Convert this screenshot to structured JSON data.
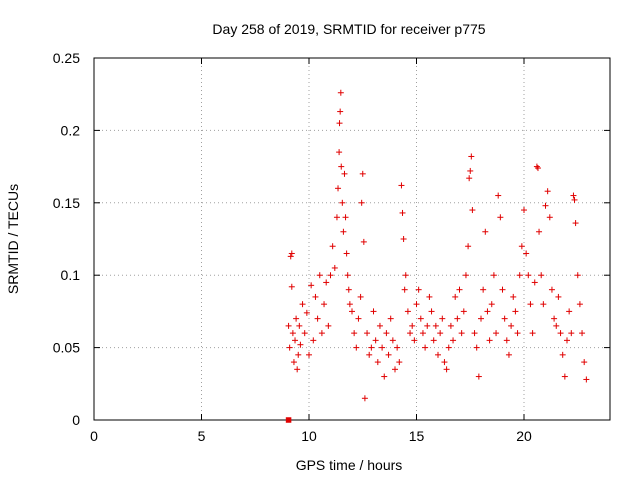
{
  "chart_data": {
    "type": "scatter",
    "title": "Day 258 of 2019, SRMTID for receiver p775",
    "xlabel": "GPS time / hours",
    "ylabel": "SRMTID / TECUs",
    "xlim": [
      0,
      24
    ],
    "ylim": [
      0,
      0.25
    ],
    "x_ticks": [
      0,
      5,
      10,
      15,
      20
    ],
    "x_tick_labels": [
      "0",
      "5",
      "10",
      "15",
      "20"
    ],
    "y_ticks": [
      0,
      0.05,
      0.1,
      0.15,
      0.2,
      0.25
    ],
    "y_tick_labels": [
      "0",
      "0.05",
      "0.1",
      "0.15",
      "0.2",
      "0.25"
    ],
    "grid": true,
    "marker": "plus",
    "color": "#e00000",
    "square_marker": {
      "x": 9.05,
      "y": 0.0
    },
    "series": [
      {
        "name": "SRMTID",
        "points": [
          [
            9.05,
            0.065
          ],
          [
            9.1,
            0.05
          ],
          [
            9.15,
            0.113
          ],
          [
            9.2,
            0.115
          ],
          [
            9.2,
            0.092
          ],
          [
            9.25,
            0.06
          ],
          [
            9.3,
            0.04
          ],
          [
            9.35,
            0.055
          ],
          [
            9.4,
            0.07
          ],
          [
            9.45,
            0.035
          ],
          [
            9.5,
            0.045
          ],
          [
            9.55,
            0.065
          ],
          [
            9.6,
            0.052
          ],
          [
            9.7,
            0.08
          ],
          [
            9.8,
            0.06
          ],
          [
            9.9,
            0.074
          ],
          [
            10.0,
            0.045
          ],
          [
            10.1,
            0.093
          ],
          [
            10.2,
            0.055
          ],
          [
            10.3,
            0.085
          ],
          [
            10.4,
            0.07
          ],
          [
            10.5,
            0.1
          ],
          [
            10.6,
            0.06
          ],
          [
            10.7,
            0.08
          ],
          [
            10.8,
            0.095
          ],
          [
            10.9,
            0.065
          ],
          [
            11.0,
            0.1
          ],
          [
            11.1,
            0.12
          ],
          [
            11.2,
            0.105
          ],
          [
            11.3,
            0.14
          ],
          [
            11.35,
            0.16
          ],
          [
            11.4,
            0.185
          ],
          [
            11.42,
            0.205
          ],
          [
            11.45,
            0.213
          ],
          [
            11.48,
            0.226
          ],
          [
            11.5,
            0.175
          ],
          [
            11.55,
            0.15
          ],
          [
            11.6,
            0.13
          ],
          [
            11.65,
            0.17
          ],
          [
            11.7,
            0.14
          ],
          [
            11.75,
            0.115
          ],
          [
            11.8,
            0.1
          ],
          [
            11.85,
            0.09
          ],
          [
            11.9,
            0.08
          ],
          [
            12.0,
            0.075
          ],
          [
            12.1,
            0.06
          ],
          [
            12.2,
            0.05
          ],
          [
            12.3,
            0.07
          ],
          [
            12.4,
            0.085
          ],
          [
            12.45,
            0.15
          ],
          [
            12.5,
            0.17
          ],
          [
            12.55,
            0.123
          ],
          [
            12.6,
            0.015
          ],
          [
            12.7,
            0.06
          ],
          [
            12.8,
            0.045
          ],
          [
            12.9,
            0.05
          ],
          [
            13.0,
            0.075
          ],
          [
            13.1,
            0.055
          ],
          [
            13.2,
            0.04
          ],
          [
            13.3,
            0.065
          ],
          [
            13.4,
            0.05
          ],
          [
            13.5,
            0.03
          ],
          [
            13.6,
            0.06
          ],
          [
            13.7,
            0.045
          ],
          [
            13.8,
            0.07
          ],
          [
            13.9,
            0.055
          ],
          [
            14.0,
            0.035
          ],
          [
            14.1,
            0.05
          ],
          [
            14.2,
            0.04
          ],
          [
            14.3,
            0.162
          ],
          [
            14.35,
            0.143
          ],
          [
            14.4,
            0.125
          ],
          [
            14.45,
            0.09
          ],
          [
            14.5,
            0.1
          ],
          [
            14.6,
            0.075
          ],
          [
            14.7,
            0.06
          ],
          [
            14.8,
            0.065
          ],
          [
            14.9,
            0.055
          ],
          [
            15.0,
            0.08
          ],
          [
            15.1,
            0.09
          ],
          [
            15.2,
            0.07
          ],
          [
            15.3,
            0.06
          ],
          [
            15.4,
            0.05
          ],
          [
            15.5,
            0.065
          ],
          [
            15.6,
            0.085
          ],
          [
            15.7,
            0.075
          ],
          [
            15.8,
            0.055
          ],
          [
            15.9,
            0.065
          ],
          [
            16.0,
            0.045
          ],
          [
            16.1,
            0.06
          ],
          [
            16.2,
            0.07
          ],
          [
            16.3,
            0.04
          ],
          [
            16.4,
            0.035
          ],
          [
            16.5,
            0.05
          ],
          [
            16.6,
            0.065
          ],
          [
            16.7,
            0.055
          ],
          [
            16.8,
            0.085
          ],
          [
            16.9,
            0.07
          ],
          [
            17.0,
            0.09
          ],
          [
            17.1,
            0.06
          ],
          [
            17.2,
            0.075
          ],
          [
            17.3,
            0.1
          ],
          [
            17.4,
            0.12
          ],
          [
            17.45,
            0.167
          ],
          [
            17.5,
            0.172
          ],
          [
            17.55,
            0.182
          ],
          [
            17.6,
            0.145
          ],
          [
            17.7,
            0.06
          ],
          [
            17.8,
            0.05
          ],
          [
            17.9,
            0.03
          ],
          [
            18.0,
            0.07
          ],
          [
            18.1,
            0.09
          ],
          [
            18.2,
            0.13
          ],
          [
            18.3,
            0.075
          ],
          [
            18.4,
            0.055
          ],
          [
            18.5,
            0.08
          ],
          [
            18.6,
            0.1
          ],
          [
            18.7,
            0.06
          ],
          [
            18.8,
            0.155
          ],
          [
            18.9,
            0.14
          ],
          [
            19.0,
            0.09
          ],
          [
            19.1,
            0.07
          ],
          [
            19.2,
            0.055
          ],
          [
            19.3,
            0.045
          ],
          [
            19.4,
            0.065
          ],
          [
            19.5,
            0.085
          ],
          [
            19.6,
            0.075
          ],
          [
            19.7,
            0.06
          ],
          [
            19.8,
            0.1
          ],
          [
            19.9,
            0.12
          ],
          [
            20.0,
            0.145
          ],
          [
            20.1,
            0.115
          ],
          [
            20.2,
            0.1
          ],
          [
            20.3,
            0.08
          ],
          [
            20.4,
            0.06
          ],
          [
            20.5,
            0.095
          ],
          [
            20.6,
            0.175
          ],
          [
            20.65,
            0.174
          ],
          [
            20.7,
            0.13
          ],
          [
            20.8,
            0.1
          ],
          [
            20.9,
            0.08
          ],
          [
            21.0,
            0.148
          ],
          [
            21.1,
            0.158
          ],
          [
            21.2,
            0.14
          ],
          [
            21.3,
            0.09
          ],
          [
            21.4,
            0.07
          ],
          [
            21.5,
            0.065
          ],
          [
            21.6,
            0.085
          ],
          [
            21.7,
            0.06
          ],
          [
            21.8,
            0.045
          ],
          [
            21.9,
            0.03
          ],
          [
            22.0,
            0.055
          ],
          [
            22.1,
            0.075
          ],
          [
            22.2,
            0.06
          ],
          [
            22.3,
            0.155
          ],
          [
            22.35,
            0.152
          ],
          [
            22.4,
            0.136
          ],
          [
            22.5,
            0.1
          ],
          [
            22.6,
            0.08
          ],
          [
            22.7,
            0.06
          ],
          [
            22.8,
            0.04
          ],
          [
            22.9,
            0.028
          ]
        ]
      }
    ]
  }
}
